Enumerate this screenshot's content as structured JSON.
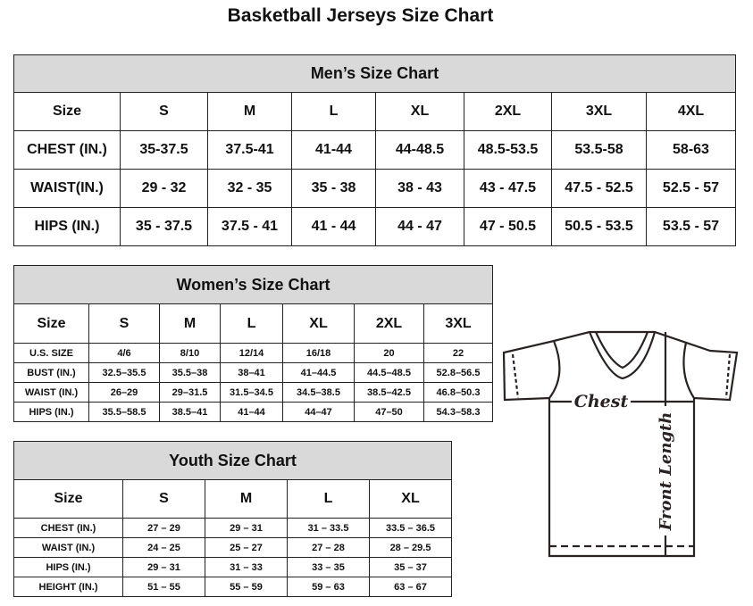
{
  "title": "Basketball Jerseys Size Chart",
  "men": {
    "title": "Men’s Size Chart",
    "header": [
      "Size",
      "S",
      "M",
      "L",
      "XL",
      "2XL",
      "3XL",
      "4XL"
    ],
    "rows": [
      [
        "CHEST (IN.)",
        "35-37.5",
        "37.5-41",
        "41-44",
        "44-48.5",
        "48.5-53.5",
        "53.5-58",
        "58-63"
      ],
      [
        "WAIST(IN.)",
        "29 - 32",
        "32 - 35",
        "35 - 38",
        "38 - 43",
        "43 - 47.5",
        "47.5 - 52.5",
        "52.5 - 57"
      ],
      [
        "HIPS (IN.)",
        "35 - 37.5",
        "37.5 - 41",
        "41 - 44",
        "44 - 47",
        "47 - 50.5",
        "50.5 - 53.5",
        "53.5 - 57"
      ]
    ]
  },
  "women": {
    "title": "Women’s Size Chart",
    "header": [
      "Size",
      "S",
      "M",
      "L",
      "XL",
      "2XL",
      "3XL"
    ],
    "rows": [
      [
        "U.S. SIZE",
        "4/6",
        "8/10",
        "12/14",
        "16/18",
        "20",
        "22"
      ],
      [
        "BUST (IN.)",
        "32.5–35.5",
        "35.5–38",
        "38–41",
        "41–44.5",
        "44.5–48.5",
        "52.8–56.5"
      ],
      [
        "WAIST (IN.)",
        "26–29",
        "29–31.5",
        "31.5–34.5",
        "34.5–38.5",
        "38.5–42.5",
        "46.8–50.3"
      ],
      [
        "HIPS (IN.)",
        "35.5–58.5",
        "38.5–41",
        "41–44",
        "44–47",
        "47–50",
        "54.3–58.3"
      ]
    ]
  },
  "youth": {
    "title": "Youth Size Chart",
    "header": [
      "Size",
      "S",
      "M",
      "L",
      "XL"
    ],
    "rows": [
      [
        "CHEST (IN.)",
        "27 – 29",
        "29 – 31",
        "31 – 33.5",
        "33.5 – 36.5"
      ],
      [
        "WAIST (IN.)",
        "24 – 25",
        "25 – 27",
        "27 – 28",
        "28 – 29.5"
      ],
      [
        "HIPS (IN.)",
        "29 – 31",
        "31 – 33",
        "33 – 35",
        "35 – 37"
      ],
      [
        "HEIGHT (IN.)",
        "51 – 55",
        "55 – 59",
        "59 – 63",
        "63 – 67"
      ]
    ]
  },
  "diagram": {
    "chest_label": "Chest",
    "length_label": "Front Length"
  }
}
